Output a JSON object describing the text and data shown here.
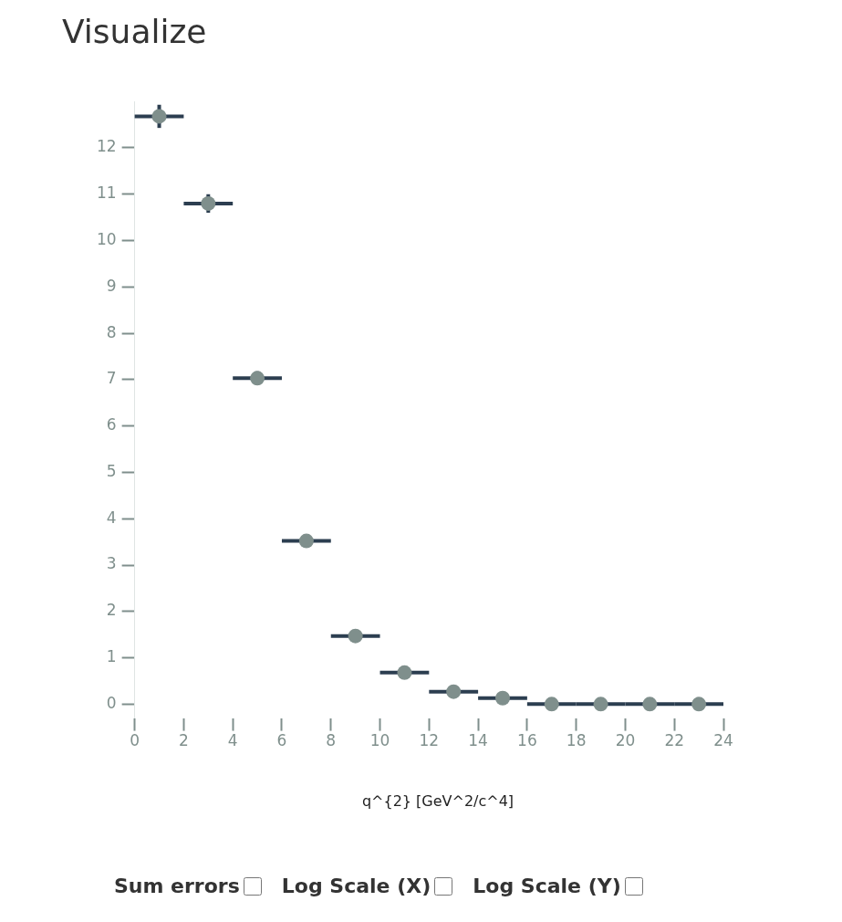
{
  "chart_data": {
    "type": "scatter",
    "title": "Visualize",
    "xlabel": "q^{2} [GeV^2/c^4]",
    "x": [
      1,
      3,
      5,
      7,
      9,
      11,
      13,
      15,
      17,
      19,
      21,
      23
    ],
    "series": [
      {
        "color": "#7f8f8c",
        "values": [
          12.68,
          10.8,
          7.03,
          3.52,
          1.47,
          0.68,
          0.27,
          0.13,
          0,
          0,
          0,
          0
        ],
        "errors": [
          0.25,
          0.2,
          0.15,
          0.08,
          0.05,
          0.04,
          0.03,
          0.02,
          0.02,
          0.02,
          0.02,
          0.1
        ],
        "xerrors": [
          1,
          1,
          1,
          1,
          1,
          1,
          1,
          1,
          1,
          1,
          1,
          1
        ]
      }
    ],
    "xlim": [
      0,
      24
    ],
    "xticks": [
      0,
      2,
      4,
      6,
      8,
      10,
      12,
      14,
      16,
      18,
      20,
      22,
      24
    ],
    "ylim": [
      -0.3,
      13
    ],
    "yticks": [
      0,
      1,
      2,
      3,
      4,
      5,
      6,
      7,
      8,
      9,
      10,
      11,
      12
    ],
    "marker": "circle",
    "grid": false,
    "legend": false,
    "annotations": [
      "Sum errors",
      "Log Scale (X)",
      "Log Scale (Y)"
    ]
  }
}
